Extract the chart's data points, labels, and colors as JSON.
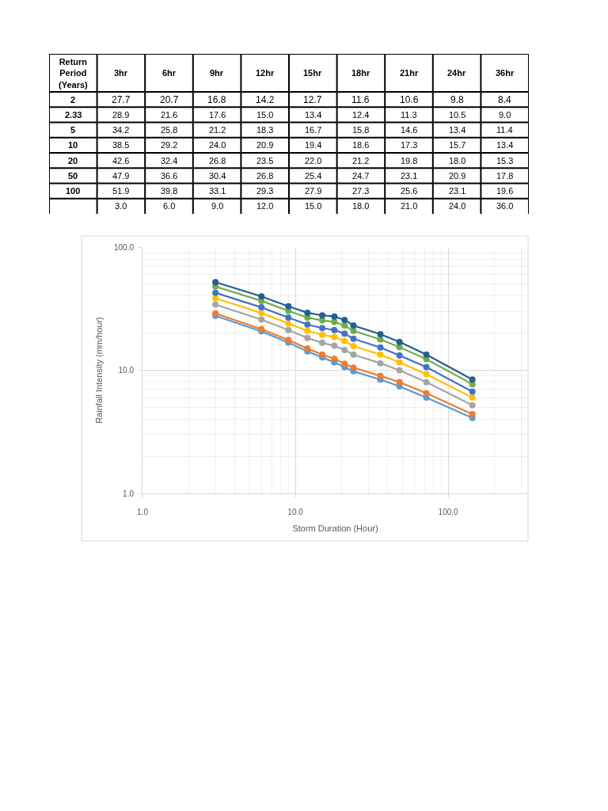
{
  "chart_data": [
    {
      "type": "heatmap",
      "ylabel": "Return Period (Years)",
      "data_labels": true,
      "categories": [
        "3hr",
        "6hr",
        "9hr",
        "12hr",
        "15hr",
        "18hr",
        "21hr",
        "24hr",
        "36hr"
      ],
      "y_categories": [
        "2",
        "2.33",
        "5",
        "10",
        "20",
        "50",
        "100",
        null
      ],
      "cells": [
        [
          27.7,
          20.7,
          16.8,
          14.2,
          12.7,
          11.6,
          10.6,
          9.8,
          8.4
        ],
        [
          28.9,
          21.6,
          17.6,
          15.0,
          13.4,
          12.4,
          11.3,
          10.5,
          9.0
        ],
        [
          34.2,
          25.8,
          21.2,
          18.3,
          16.7,
          15.8,
          14.6,
          13.4,
          11.4
        ],
        [
          38.5,
          29.2,
          24.0,
          20.9,
          19.4,
          18.6,
          17.3,
          15.7,
          13.4
        ],
        [
          42.6,
          32.4,
          26.8,
          23.5,
          22.0,
          21.2,
          19.8,
          18.0,
          15.3
        ],
        [
          47.9,
          36.6,
          30.4,
          26.8,
          25.4,
          24.7,
          23.1,
          20.9,
          17.8
        ],
        [
          51.9,
          39.8,
          33.1,
          29.3,
          27.9,
          27.3,
          25.6,
          23.1,
          19.6
        ],
        [
          3.0,
          6.0,
          9.0,
          12.0,
          15.0,
          18.0,
          21.0,
          24.0,
          36.0
        ]
      ],
      "cell_labels": [
        [
          "27.7",
          "20.7",
          "16.8",
          "14.2",
          "12.7",
          "11.6",
          "10.6",
          "9.8",
          "8.4"
        ],
        [
          "28.9",
          "21.6",
          "17.6",
          "15.0",
          "13.4",
          "12.4",
          "11.3",
          "10.5",
          "9.0"
        ],
        [
          "34.2",
          "25.8",
          "21.2",
          "18.3",
          "16.7",
          "15.8",
          "14.6",
          "13.4",
          "11.4"
        ],
        [
          "38.5",
          "29.2",
          "24.0",
          "20.9",
          "19.4",
          "18.6",
          "17.3",
          "15.7",
          "13.4"
        ],
        [
          "42.6",
          "32.4",
          "26.8",
          "23.5",
          "22.0",
          "21.2",
          "19.8",
          "18.0",
          "15.3"
        ],
        [
          "47.9",
          "36.6",
          "30.4",
          "26.8",
          "25.4",
          "24.7",
          "23.1",
          "20.9",
          "17.8"
        ],
        [
          "51.9",
          "39.8",
          "33.1",
          "29.3",
          "27.9",
          "27.3",
          "25.6",
          "23.1",
          "19.6"
        ],
        [
          "3.0",
          "6.0",
          "9.0",
          "12.0",
          "15.0",
          "18.0",
          "21.0",
          "24.0",
          "36.0"
        ]
      ]
    },
    {
      "type": "line",
      "xlabel": "Storm Duration (Hour)",
      "ylabel": "Rainfall Intensity (mm/hour)",
      "x": [
        3,
        6,
        9,
        12,
        15,
        18,
        21,
        24,
        36,
        48,
        72,
        144
      ],
      "series": [
        {
          "color": "#5b9bd5",
          "values": [
            27.7,
            20.7,
            16.8,
            14.2,
            12.7,
            11.6,
            10.6,
            9.8,
            8.4,
            7.4,
            6.0,
            4.1
          ]
        },
        {
          "color": "#ed7d31",
          "values": [
            28.9,
            21.6,
            17.6,
            15.0,
            13.4,
            12.4,
            11.3,
            10.5,
            9.0,
            8.0,
            6.5,
            4.4
          ]
        },
        {
          "color": "#a5a5a5",
          "values": [
            34.2,
            25.8,
            21.2,
            18.3,
            16.7,
            15.8,
            14.6,
            13.4,
            11.4,
            10.0,
            8.0,
            5.2
          ]
        },
        {
          "color": "#ffc000",
          "values": [
            38.5,
            29.2,
            24.0,
            20.9,
            19.4,
            18.6,
            17.3,
            15.7,
            13.4,
            11.6,
            9.3,
            6.0
          ]
        },
        {
          "color": "#4472c4",
          "values": [
            42.6,
            32.4,
            26.8,
            23.5,
            22.0,
            21.2,
            19.8,
            18.0,
            15.3,
            13.2,
            10.6,
            6.7
          ]
        },
        {
          "color": "#70ad47",
          "values": [
            47.9,
            36.6,
            30.4,
            26.8,
            25.4,
            24.7,
            23.1,
            20.9,
            17.8,
            15.4,
            12.3,
            7.7
          ]
        },
        {
          "color": "#255e91",
          "values": [
            51.9,
            39.8,
            33.1,
            29.3,
            27.9,
            27.3,
            25.6,
            23.1,
            19.6,
            17.0,
            13.4,
            8.4
          ]
        }
      ],
      "log": "xy",
      "xlim": [
        1,
        333
      ],
      "ylim": [
        1,
        100
      ],
      "xticks": [
        {
          "value": 1,
          "label": "1.0"
        },
        {
          "value": 10,
          "label": "10.0"
        },
        {
          "value": 100,
          "label": "100.0"
        }
      ],
      "yticks": [
        {
          "value": 1,
          "label": "1.0"
        },
        {
          "value": 10,
          "label": "10.0"
        },
        {
          "value": 100,
          "label": "100.0"
        }
      ],
      "grid": true,
      "marker": "circle",
      "line_style": "solid"
    }
  ]
}
